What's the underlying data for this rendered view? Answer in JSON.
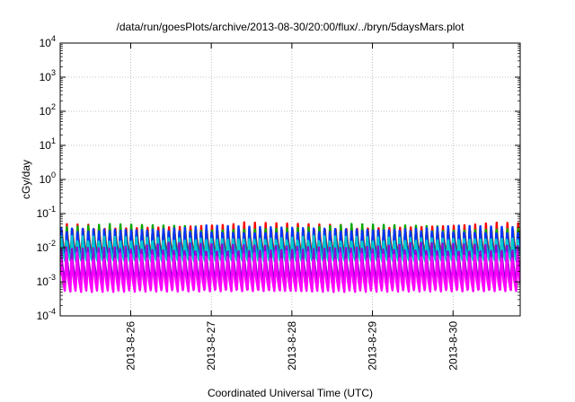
{
  "chart_data": {
    "type": "line",
    "title": "/data/run/goesPlots/archive/2013-08-30/20:00/flux/../bryn/5daysMars.plot",
    "xlabel": "Coordinated Universal Time (UTC)",
    "ylabel": "cGy/day",
    "yscale": "log",
    "ylim": [
      0.0001,
      10000
    ],
    "xlim": [
      "2013-08-25 03:00",
      "2013-08-30 20:00"
    ],
    "grid": true,
    "legend": "none",
    "y_ticks": [
      {
        "base": "10",
        "exp": "-4"
      },
      {
        "base": "10",
        "exp": "-3"
      },
      {
        "base": "10",
        "exp": "-2"
      },
      {
        "base": "10",
        "exp": "-1"
      },
      {
        "base": "10",
        "exp": "0"
      },
      {
        "base": "10",
        "exp": "1"
      },
      {
        "base": "10",
        "exp": "2"
      },
      {
        "base": "10",
        "exp": "3"
      },
      {
        "base": "10",
        "exp": "4"
      }
    ],
    "x_ticks": [
      "2013-8-26",
      "2013-8-27",
      "2013-8-28",
      "2013-8-29",
      "2013-8-30"
    ],
    "period_hours": 1.6,
    "series": [
      {
        "color": "#ff0000",
        "peak": 0.055,
        "trough": 0.0055
      },
      {
        "color": "#00aa00",
        "peak": 0.05,
        "trough": 0.0045
      },
      {
        "color": "#0033ff",
        "peak": 0.045,
        "trough": 0.004
      },
      {
        "color": "#00cccc",
        "peak": 0.022,
        "trough": 0.004
      },
      {
        "color": "#9400d3",
        "peak": 0.014,
        "trough": 0.0009
      },
      {
        "color": "#ff00ff",
        "peak": 0.008,
        "trough": 0.0005
      }
    ]
  }
}
